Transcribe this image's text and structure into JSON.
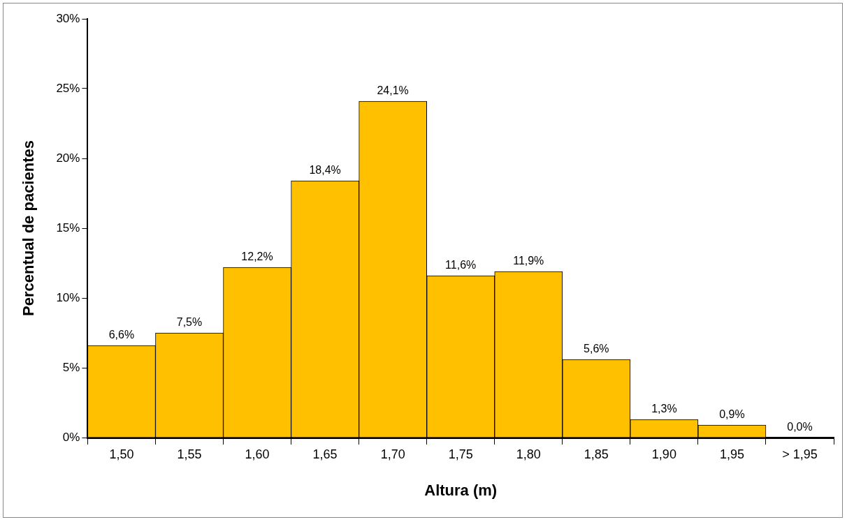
{
  "chart_data": {
    "type": "bar",
    "xlabel": "Altura (m)",
    "ylabel": "Percentual de pacientes",
    "categories": [
      "1,50",
      "1,55",
      "1,60",
      "1,65",
      "1,70",
      "1,75",
      "1,80",
      "1,85",
      "1,90",
      "1,95",
      "> 1,95"
    ],
    "values": [
      6.6,
      7.5,
      12.2,
      18.4,
      24.1,
      11.6,
      11.9,
      5.6,
      1.3,
      0.9,
      0.0
    ],
    "value_labels": [
      "6,6%",
      "7,5%",
      "12,2%",
      "18,4%",
      "24,1%",
      "11,6%",
      "11,9%",
      "5,6%",
      "1,3%",
      "0,9%",
      "0,0%"
    ],
    "color": "#ffc000",
    "ylim": [
      0,
      30
    ],
    "yticks": [
      {
        "value": 0,
        "label": "0%"
      },
      {
        "value": 5,
        "label": "5%"
      },
      {
        "value": 10,
        "label": "10%"
      },
      {
        "value": 15,
        "label": "15%"
      },
      {
        "value": 20,
        "label": "20%"
      },
      {
        "value": 25,
        "label": "25%"
      },
      {
        "value": 30,
        "label": "30%"
      }
    ],
    "grid": false,
    "legend": false
  }
}
